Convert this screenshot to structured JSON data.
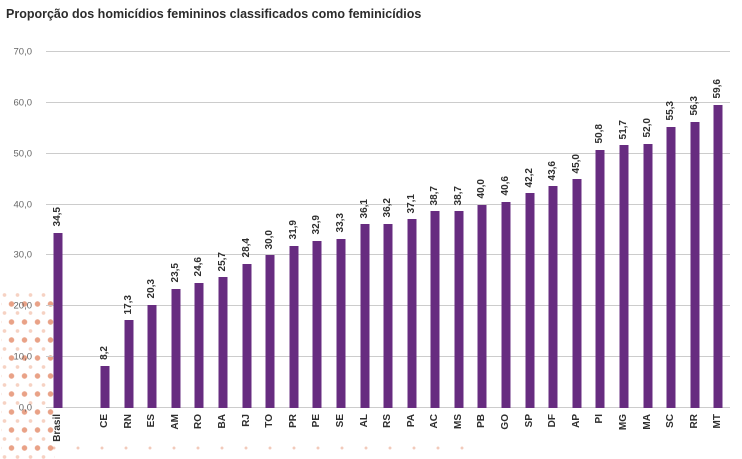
{
  "chart_data": {
    "type": "bar",
    "title": "Proporção dos homicídios femininos classificados como feminicídios",
    "categories": [
      "Brasil",
      "CE",
      "RN",
      "ES",
      "AM",
      "RO",
      "BA",
      "RJ",
      "TO",
      "PR",
      "PE",
      "SE",
      "AL",
      "RS",
      "PA",
      "AC",
      "MS",
      "PB",
      "GO",
      "SP",
      "DF",
      "AP",
      "PI",
      "MG",
      "MA",
      "SC",
      "RR",
      "MT"
    ],
    "values": [
      34.5,
      8.2,
      17.3,
      20.3,
      23.5,
      24.6,
      25.7,
      28.4,
      30.0,
      31.9,
      32.9,
      33.3,
      36.1,
      36.2,
      37.1,
      38.7,
      38.7,
      40.0,
      40.6,
      42.2,
      43.6,
      45.0,
      50.8,
      51.7,
      52.0,
      55.3,
      56.3,
      59.6
    ],
    "value_labels": [
      "34,5",
      "8,2",
      "17,3",
      "20,3",
      "23,5",
      "24,6",
      "25,7",
      "28,4",
      "30,0",
      "31,9",
      "32,9",
      "33,3",
      "36,1",
      "36,2",
      "37,1",
      "38,7",
      "38,7",
      "40,0",
      "40,6",
      "42,2",
      "43,6",
      "45,0",
      "50,8",
      "51,7",
      "52,0",
      "55,3",
      "56,3",
      "59,6"
    ],
    "y_ticks": [
      {
        "label": "70,0",
        "value": 70
      },
      {
        "label": "60,0",
        "value": 60
      },
      {
        "label": "50,0",
        "value": 50
      },
      {
        "label": "40,0",
        "value": 40
      },
      {
        "label": "30,0",
        "value": 30
      },
      {
        "label": "20,0",
        "value": 20
      },
      {
        "label": "10,0",
        "value": 10
      },
      {
        "label": "0,0",
        "value": 0
      }
    ],
    "ylim": [
      0,
      70
    ],
    "xlabel": "",
    "ylabel": "",
    "grid": "horizontal",
    "legend": "none",
    "gap_after_index": 0,
    "orientation": "vertical-rotated-labels",
    "colors": {
      "bar": "#672c80",
      "grid": "#cccccc",
      "value_label": "#2f2f2f",
      "axis_label": "#2f2f2f",
      "tick_label": "#666666",
      "title": "#2b2b2b",
      "dots": "#e07a54"
    }
  }
}
